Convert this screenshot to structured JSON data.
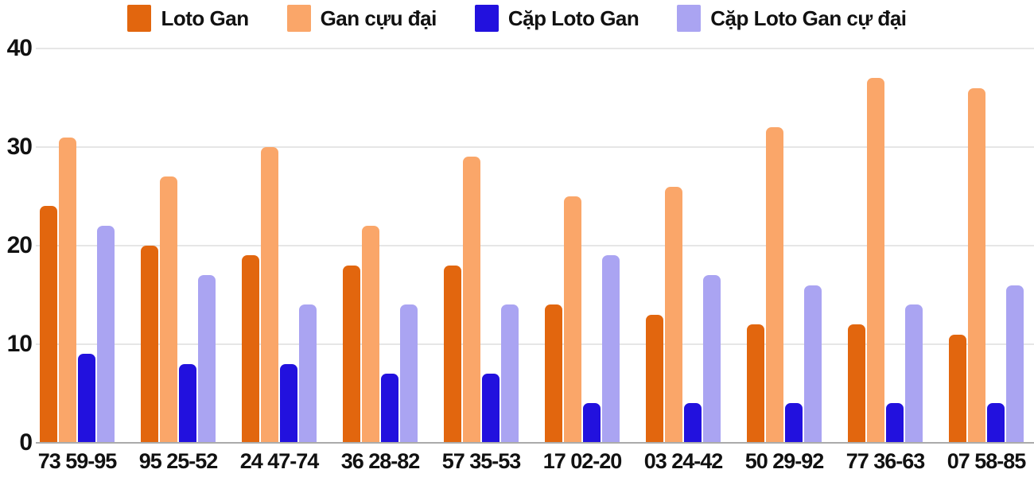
{
  "chart_data": {
    "type": "bar",
    "title": "",
    "xlabel": "",
    "ylabel": "",
    "categories": [
      "73 59-95",
      "95 25-52",
      "24 47-74",
      "36 28-82",
      "57 35-53",
      "17 02-20",
      "03 24-42",
      "50 29-92",
      "77 36-63",
      "07 58-85"
    ],
    "series": [
      {
        "name": "Loto Gan",
        "color": "#e2660e",
        "values": [
          24,
          20,
          19,
          18,
          18,
          14,
          13,
          12,
          12,
          11
        ]
      },
      {
        "name": "Gan cựu đại",
        "color": "#faa669",
        "values": [
          31,
          27,
          30,
          22,
          29,
          25,
          26,
          32,
          37,
          36
        ]
      },
      {
        "name": "Cặp Loto Gan",
        "color": "#2211de",
        "values": [
          9,
          8,
          8,
          7,
          7,
          4,
          4,
          4,
          4,
          4
        ]
      },
      {
        "name": "Cặp Loto Gan cự đại",
        "color": "#aaa4f2",
        "values": [
          22,
          17,
          14,
          14,
          14,
          19,
          17,
          16,
          14,
          16
        ]
      }
    ],
    "y_ticks": [
      0,
      10,
      20,
      30,
      40
    ],
    "ylim": [
      0,
      40
    ],
    "grid": true,
    "legend_position": "top",
    "colors": {
      "gridline": "#e6e6e6",
      "axis_baseline": "#ababab",
      "text": "#111111",
      "background": "#ffffff"
    }
  }
}
